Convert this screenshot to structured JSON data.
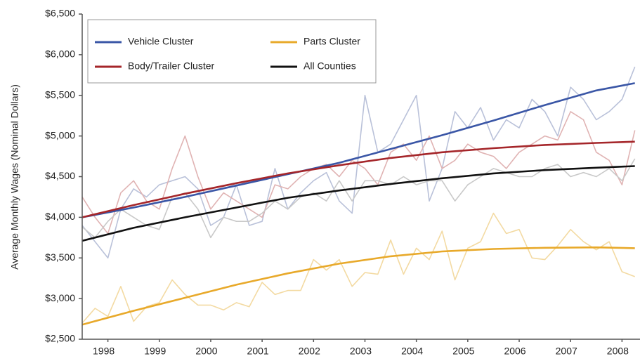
{
  "chart_data": {
    "type": "line",
    "y_label": "Average Monthly Wages (Nominal Dollars)",
    "xlim": [
      1998,
      2008.85
    ],
    "ylim": [
      2500,
      6500
    ],
    "xticks": [
      {
        "value": 1998.5,
        "label": "1998"
      },
      {
        "value": 1999.5,
        "label": "1999"
      },
      {
        "value": 2000.5,
        "label": "2000"
      },
      {
        "value": 2001.5,
        "label": "2001"
      },
      {
        "value": 2002.5,
        "label": "2002"
      },
      {
        "value": 2003.5,
        "label": "2003"
      },
      {
        "value": 2004.5,
        "label": "2004"
      },
      {
        "value": 2005.5,
        "label": "2005"
      },
      {
        "value": 2006.5,
        "label": "2006"
      },
      {
        "value": 2007.5,
        "label": "2007"
      },
      {
        "value": 2008.5,
        "label": "2008"
      }
    ],
    "yticks": [
      {
        "value": 2500,
        "label": "$2,500"
      },
      {
        "value": 3000,
        "label": "$3,000"
      },
      {
        "value": 3500,
        "label": "$3,500"
      },
      {
        "value": 4000,
        "label": "$4,000"
      },
      {
        "value": 4500,
        "label": "$4,500"
      },
      {
        "value": 5000,
        "label": "$5,000"
      },
      {
        "value": 5500,
        "label": "$5,500"
      },
      {
        "value": 6000,
        "label": "$6,000"
      },
      {
        "value": 6500,
        "label": "$6,500"
      }
    ],
    "grid": false,
    "legend_position": "upper left",
    "x": [
      1998,
      1998.25,
      1998.5,
      1998.75,
      1999,
      1999.25,
      1999.5,
      1999.75,
      2000,
      2000.25,
      2000.5,
      2000.75,
      2001,
      2001.25,
      2001.5,
      2001.75,
      2002,
      2002.25,
      2002.5,
      2002.75,
      2003,
      2003.25,
      2003.5,
      2003.75,
      2004,
      2004.25,
      2004.5,
      2004.75,
      2005,
      2005.25,
      2005.5,
      2005.75,
      2006,
      2006.25,
      2006.5,
      2006.75,
      2007,
      2007.25,
      2007.5,
      2007.75,
      2008,
      2008.25,
      2008.5,
      2008.75
    ],
    "trend_x": [
      1998,
      1999,
      2000,
      2001,
      2002,
      2003,
      2004,
      2005,
      2006,
      2007,
      2008,
      2008.75
    ],
    "series": [
      {
        "name": "Vehicle Cluster",
        "color": "#3a56a6",
        "raw_color": "#b9c1d9",
        "values": [
          3900,
          3700,
          3500,
          4100,
          4350,
          4250,
          4400,
          4450,
          4500,
          4350,
          3900,
          4000,
          4400,
          3900,
          3950,
          4600,
          4100,
          4300,
          4450,
          4550,
          4200,
          4050,
          5500,
          4800,
          4900,
          5200,
          5500,
          4200,
          4600,
          5300,
          5100,
          5350,
          4950,
          5200,
          5100,
          5450,
          5300,
          5000,
          5600,
          5450,
          5200,
          5300,
          5450,
          5850
        ],
        "trend_values": [
          4000,
          4120,
          4250,
          4390,
          4530,
          4670,
          4840,
          5010,
          5190,
          5380,
          5560,
          5650
        ]
      },
      {
        "name": "Parts Cluster",
        "color": "#e8a92a",
        "raw_color": "#f3daa2",
        "values": [
          2700,
          2880,
          2780,
          3150,
          2720,
          2900,
          2950,
          3230,
          3050,
          2920,
          2920,
          2860,
          2950,
          2900,
          3200,
          3050,
          3100,
          3100,
          3480,
          3350,
          3480,
          3150,
          3320,
          3300,
          3720,
          3300,
          3620,
          3480,
          3830,
          3230,
          3620,
          3700,
          4050,
          3800,
          3850,
          3500,
          3480,
          3650,
          3850,
          3700,
          3600,
          3700,
          3330,
          3270
        ],
        "trend_values": [
          2680,
          2850,
          3010,
          3170,
          3310,
          3430,
          3520,
          3580,
          3610,
          3625,
          3630,
          3620
        ]
      },
      {
        "name": "Body/Trailer Cluster",
        "color": "#a5262a",
        "raw_color": "#e0b3b3",
        "values": [
          4250,
          4000,
          3800,
          4300,
          4450,
          4200,
          4100,
          4600,
          5000,
          4500,
          4100,
          4300,
          4200,
          4100,
          4000,
          4400,
          4350,
          4500,
          4600,
          4650,
          4500,
          4700,
          4600,
          4400,
          4800,
          4900,
          4700,
          5000,
          4600,
          4700,
          4900,
          4800,
          4750,
          4600,
          4800,
          4900,
          5000,
          4950,
          5300,
          5200,
          4800,
          4700,
          4400,
          5070
        ],
        "trend_values": [
          4000,
          4150,
          4290,
          4420,
          4540,
          4640,
          4730,
          4800,
          4850,
          4890,
          4915,
          4930
        ]
      },
      {
        "name": "All Counties",
        "color": "#111111",
        "raw_color": "#c9c9c9",
        "values": [
          3880,
          3750,
          3950,
          4100,
          4000,
          3900,
          3850,
          4250,
          4300,
          4100,
          3750,
          4000,
          3950,
          3950,
          4050,
          4200,
          4100,
          4250,
          4300,
          4200,
          4450,
          4200,
          4450,
          4450,
          4400,
          4500,
          4400,
          4450,
          4450,
          4200,
          4400,
          4500,
          4600,
          4550,
          4500,
          4500,
          4600,
          4650,
          4500,
          4550,
          4500,
          4600,
          4450,
          4720
        ],
        "trend_values": [
          3710,
          3870,
          4000,
          4120,
          4240,
          4330,
          4410,
          4480,
          4540,
          4580,
          4610,
          4630
        ]
      }
    ]
  }
}
